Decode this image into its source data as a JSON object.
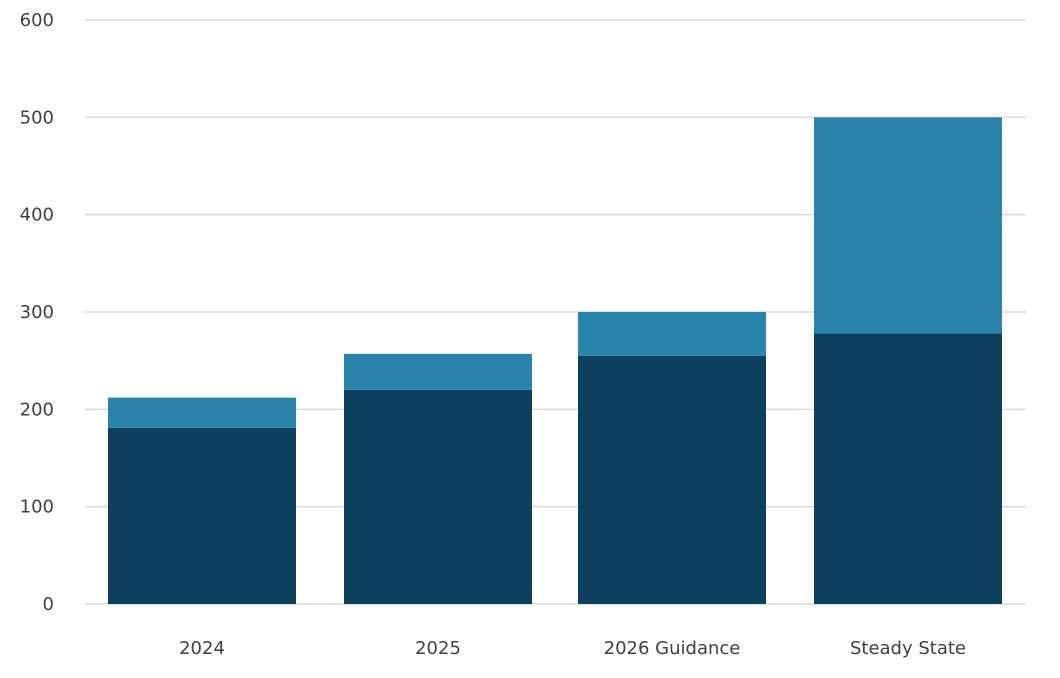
{
  "chart_data": {
    "type": "bar",
    "stacked": true,
    "categories": [
      "2024",
      "2025",
      "2026 Guidance",
      "Steady State"
    ],
    "series": [
      {
        "values": [
          181,
          220,
          255,
          278
        ],
        "color": "#0d3f5f"
      },
      {
        "values": [
          31,
          37,
          45,
          222
        ],
        "color": "#2a83ab"
      }
    ],
    "ylim": [
      0,
      600
    ],
    "yticks": [
      0,
      100,
      200,
      300,
      400,
      500,
      600
    ],
    "grid": true,
    "gridColor": "#d9d9d9",
    "title": "",
    "xlabel": "",
    "ylabel": ""
  }
}
